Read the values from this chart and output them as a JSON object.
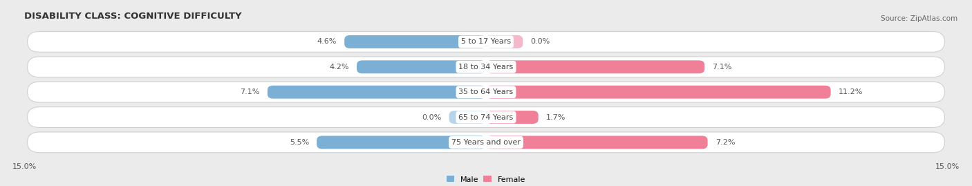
{
  "title": "DISABILITY CLASS: COGNITIVE DIFFICULTY",
  "source": "Source: ZipAtlas.com",
  "categories": [
    "5 to 17 Years",
    "18 to 34 Years",
    "35 to 64 Years",
    "65 to 74 Years",
    "75 Years and over"
  ],
  "male_values": [
    4.6,
    4.2,
    7.1,
    0.0,
    5.5
  ],
  "female_values": [
    0.0,
    7.1,
    11.2,
    1.7,
    7.2
  ],
  "male_color": "#7bafd4",
  "female_color": "#f08098",
  "male_color_light": "#b8d4e8",
  "female_color_light": "#f4b8c8",
  "xlim": 15.0,
  "bar_height": 0.52,
  "background_color": "#ebebeb",
  "row_bg_color": "#ffffff",
  "row_border_color": "#d0d0d0",
  "title_fontsize": 9.5,
  "label_fontsize": 8,
  "tick_fontsize": 8,
  "source_fontsize": 7.5
}
